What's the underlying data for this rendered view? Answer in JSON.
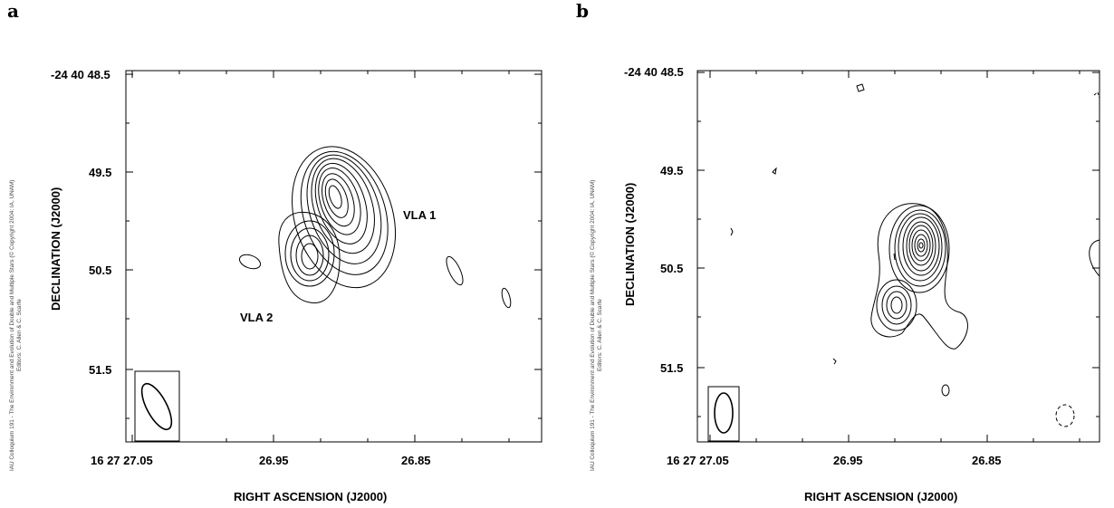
{
  "chart_data": [
    {
      "type": "contour",
      "panel_label": "a",
      "xlabel": "RIGHT ASCENSION (J2000)",
      "ylabel": "DECLINATION (J2000)",
      "x_ticks": [
        "16 27 27.05",
        "26.95",
        "26.85"
      ],
      "y_ticks": [
        "-24 40 48.5",
        "49.5",
        "50.5",
        "51.5"
      ],
      "credit_line1": "IAU Colloquium 191 - The Environment and Evolution of Double and Multiple Stars (© Copyright 2004: IA, UNAM)",
      "credit_line2": "Editors: C. Allen & C. Scarfe",
      "sources": [
        {
          "name": "VLA 1",
          "ra": "26.92",
          "dec": "49.85"
        },
        {
          "name": "VLA 2",
          "ra": "26.955",
          "dec": "50.4"
        }
      ]
    },
    {
      "type": "contour",
      "panel_label": "b",
      "xlabel": "RIGHT ASCENSION (J2000)",
      "ylabel": "DECLINATION (J2000)",
      "x_ticks": [
        "16 27 27.05",
        "26.95",
        "26.85"
      ],
      "y_ticks": [
        "-24 40 48.5",
        "49.5",
        "50.5",
        "51.5"
      ],
      "credit_line1": "IAU Colloquium 191 - The Environment and Evolution of Double and Multiple Stars (© Copyright 2004: IA, UNAM)",
      "credit_line2": "Editors: C. Allen & C. Scarfe"
    }
  ]
}
